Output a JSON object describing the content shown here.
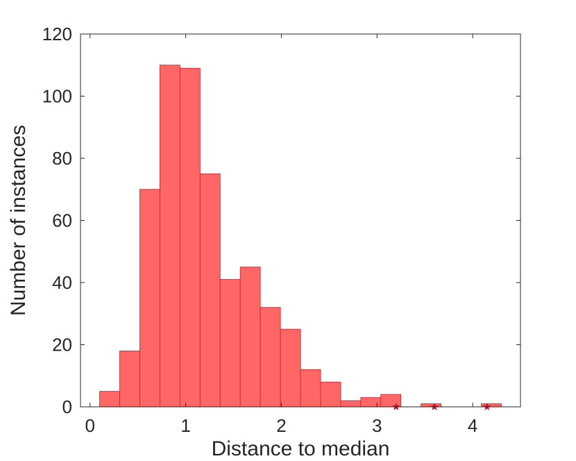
{
  "chart_data": {
    "type": "bar",
    "xlabel": "Distance to median",
    "ylabel": "Number of instances",
    "xlim": [
      -0.1,
      4.5
    ],
    "ylim": [
      0,
      120
    ],
    "xticks": [
      0,
      1,
      2,
      3,
      4
    ],
    "yticks": [
      0,
      20,
      40,
      60,
      80,
      100,
      120
    ],
    "grid": false,
    "bin_edges": [
      0.1,
      0.31,
      0.52,
      0.73,
      0.94,
      1.15,
      1.36,
      1.57,
      1.78,
      1.99,
      2.2,
      2.41,
      2.62,
      2.83,
      3.04,
      3.25,
      3.46,
      3.67,
      3.88,
      4.09,
      4.3
    ],
    "values": [
      5,
      18,
      70,
      110,
      109,
      75,
      41,
      45,
      32,
      25,
      12,
      8,
      2,
      3,
      4,
      0,
      1,
      0,
      0,
      1
    ],
    "outliers": {
      "marker": "star",
      "x": [
        3.2,
        3.6,
        4.15
      ],
      "y": [
        0,
        0,
        0
      ]
    },
    "colors": {
      "bar_fill": "#ff6666",
      "bar_edge": "#c0202a",
      "outlier": "#c8102e",
      "axis": "#262626"
    }
  }
}
